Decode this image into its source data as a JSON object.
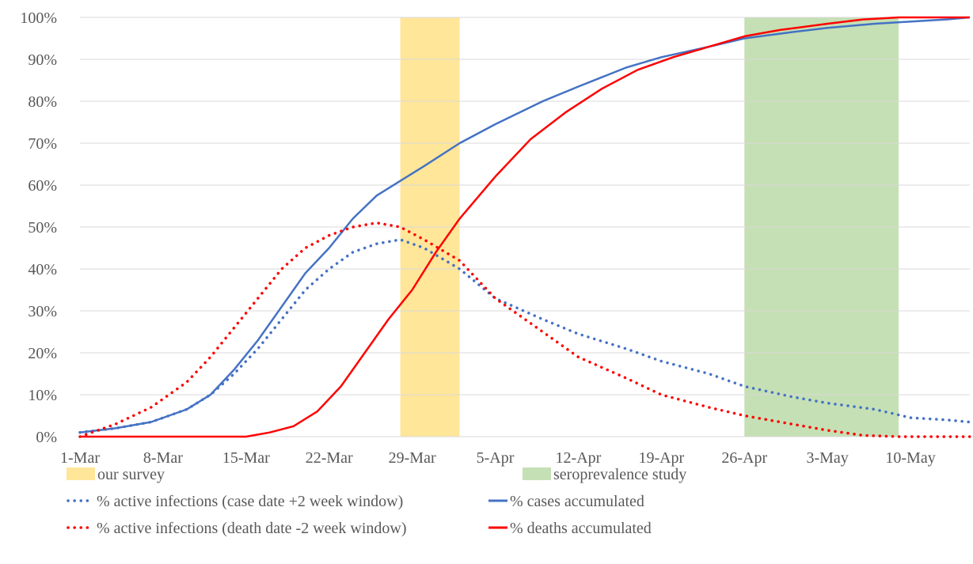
{
  "chart_data": {
    "type": "line",
    "title": "",
    "xlabel": "",
    "ylabel": "",
    "x_axis": {
      "type": "date",
      "start": "1-Mar",
      "end": "15-May",
      "ticks": [
        "1-Mar",
        "8-Mar",
        "15-Mar",
        "22-Mar",
        "29-Mar",
        "5-Apr",
        "12-Apr",
        "19-Apr",
        "26-Apr",
        "3-May",
        "10-May"
      ]
    },
    "y_axis": {
      "ylim": [
        0,
        1
      ],
      "ticks": [
        "0%",
        "10%",
        "20%",
        "30%",
        "40%",
        "50%",
        "60%",
        "70%",
        "80%",
        "90%",
        "100%"
      ]
    },
    "grid": "horizontal",
    "legend_placement": "bottom",
    "bands": [
      {
        "name": "our survey",
        "start": "28-Mar",
        "end": "2-Apr",
        "color": "#FFE699"
      },
      {
        "name": "seroprevalence study",
        "start": "26-Apr",
        "end": "9-May",
        "color": "#C5E0B4"
      }
    ],
    "series": [
      {
        "name": "% active infections (case date +2 week window)",
        "style": "dotted",
        "color": "#4472C4",
        "dates": [
          "1-Mar",
          "4-Mar",
          "7-Mar",
          "10-Mar",
          "12-Mar",
          "14-Mar",
          "16-Mar",
          "18-Mar",
          "20-Mar",
          "22-Mar",
          "24-Mar",
          "26-Mar",
          "28-Mar",
          "30-Mar",
          "2-Apr",
          "5-Apr",
          "9-Apr",
          "12-Apr",
          "16-Apr",
          "19-Apr",
          "23-Apr",
          "26-Apr",
          "30-Apr",
          "3-May",
          "7-May",
          "10-May",
          "13-May",
          "15-May"
        ],
        "values": [
          0.01,
          0.02,
          0.035,
          0.065,
          0.1,
          0.15,
          0.21,
          0.28,
          0.35,
          0.4,
          0.44,
          0.46,
          0.47,
          0.45,
          0.4,
          0.33,
          0.28,
          0.245,
          0.21,
          0.18,
          0.15,
          0.12,
          0.095,
          0.08,
          0.065,
          0.045,
          0.04,
          0.035
        ]
      },
      {
        "name": "% cases accumulated",
        "style": "solid",
        "color": "#4472C4",
        "dates": [
          "1-Mar",
          "4-Mar",
          "7-Mar",
          "10-Mar",
          "12-Mar",
          "14-Mar",
          "16-Mar",
          "18-Mar",
          "20-Mar",
          "22-Mar",
          "24-Mar",
          "26-Mar",
          "28-Mar",
          "30-Mar",
          "2-Apr",
          "5-Apr",
          "9-Apr",
          "12-Apr",
          "16-Apr",
          "19-Apr",
          "23-Apr",
          "26-Apr",
          "30-Apr",
          "3-May",
          "7-May",
          "10-May",
          "13-May",
          "15-May"
        ],
        "values": [
          0.01,
          0.02,
          0.035,
          0.065,
          0.1,
          0.16,
          0.23,
          0.31,
          0.39,
          0.45,
          0.52,
          0.575,
          0.61,
          0.645,
          0.7,
          0.745,
          0.8,
          0.835,
          0.88,
          0.905,
          0.93,
          0.95,
          0.965,
          0.975,
          0.985,
          0.99,
          0.995,
          1.0
        ]
      },
      {
        "name": "% active infections (death date -2 week window)",
        "style": "dotted",
        "color": "#FF0000",
        "dates": [
          "1-Mar",
          "4-Mar",
          "7-Mar",
          "10-Mar",
          "12-Mar",
          "14-Mar",
          "16-Mar",
          "18-Mar",
          "20-Mar",
          "22-Mar",
          "24-Mar",
          "26-Mar",
          "28-Mar",
          "30-Mar",
          "2-Apr",
          "5-Apr",
          "9-Apr",
          "12-Apr",
          "16-Apr",
          "19-Apr",
          "23-Apr",
          "26-Apr",
          "30-Apr",
          "3-May",
          "6-May",
          "9-May",
          "12-May",
          "15-May"
        ],
        "values": [
          0.0,
          0.03,
          0.07,
          0.13,
          0.19,
          0.26,
          0.33,
          0.4,
          0.45,
          0.48,
          0.5,
          0.51,
          0.5,
          0.47,
          0.42,
          0.33,
          0.25,
          0.19,
          0.14,
          0.1,
          0.07,
          0.05,
          0.03,
          0.015,
          0.003,
          0.0,
          0.0,
          0.0
        ]
      },
      {
        "name": "% deaths accumulated",
        "style": "solid",
        "color": "#FF0000",
        "dates": [
          "1-Mar",
          "3-Mar",
          "6-Mar",
          "12-Mar",
          "15-Mar",
          "17-Mar",
          "19-Mar",
          "21-Mar",
          "23-Mar",
          "25-Mar",
          "27-Mar",
          "29-Mar",
          "31-Mar",
          "2-Apr",
          "5-Apr",
          "8-Apr",
          "11-Apr",
          "14-Apr",
          "17-Apr",
          "20-Apr",
          "23-Apr",
          "26-Apr",
          "29-Apr",
          "3-May",
          "6-May",
          "9-May",
          "12-May",
          "15-May"
        ],
        "values": [
          0.0,
          -0.01,
          -0.03,
          -0.02,
          0.0,
          0.01,
          0.025,
          0.06,
          0.12,
          0.2,
          0.28,
          0.35,
          0.44,
          0.52,
          0.62,
          0.71,
          0.775,
          0.83,
          0.875,
          0.905,
          0.93,
          0.955,
          0.97,
          0.985,
          0.995,
          1.0,
          1.0,
          1.0
        ]
      }
    ],
    "legend": [
      {
        "label": "our survey",
        "kind": "patch",
        "color": "#FFE699"
      },
      {
        "label": "seroprevalence study",
        "kind": "patch",
        "color": "#C5E0B4"
      },
      {
        "label": "% active infections (case date +2 week window)",
        "kind": "dotted",
        "color": "#4472C4"
      },
      {
        "label": "% cases accumulated",
        "kind": "solid",
        "color": "#4472C4"
      },
      {
        "label": "% active infections (death date -2 week window)",
        "kind": "dotted",
        "color": "#FF0000"
      },
      {
        "label": "% deaths accumulated",
        "kind": "solid",
        "color": "#FF0000"
      }
    ]
  }
}
